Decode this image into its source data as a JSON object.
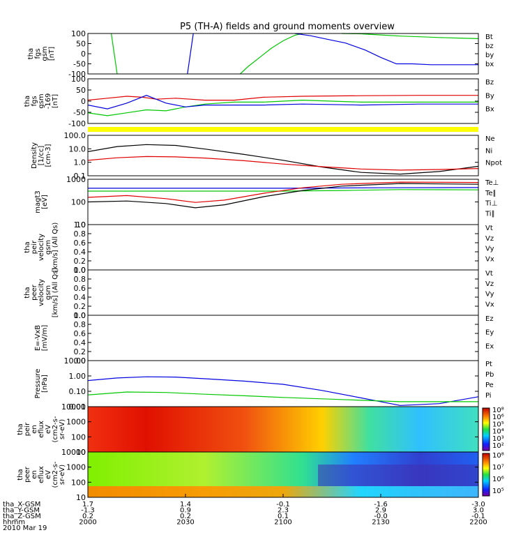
{
  "title": "P5 (TH-A) fields and ground moments overview",
  "colors": {
    "black": "#000000",
    "red": "#e00000",
    "green": "#00c800",
    "blue": "#0000e0",
    "yellow": "#ffff00"
  },
  "chart_data": [
    {
      "type": "line",
      "id": "fgs",
      "ylabel": [
        "tha",
        "fgs",
        "gsm",
        "[nT]"
      ],
      "yticks": [
        "100",
        "50",
        "0",
        "-50",
        "-100"
      ],
      "ylim": [
        -110,
        110
      ],
      "legend": [
        {
          "name": "Bt",
          "color": "black"
        },
        {
          "name": "bz",
          "color": "red"
        },
        {
          "name": "by",
          "color": "green"
        },
        {
          "name": "bx",
          "color": "blue"
        }
      ],
      "series": [
        {
          "name": "by",
          "color": "green",
          "points": [
            [
              2012,
              110
            ],
            [
              2015,
              -110
            ]
          ]
        },
        {
          "name": "bx",
          "color": "blue",
          "points": [
            [
              2051,
              -110
            ],
            [
              2054,
              110
            ]
          ]
        },
        {
          "name": "by",
          "color": "green",
          "points": [
            [
              2078,
              -110
            ],
            [
              2082,
              -70
            ],
            [
              2088,
              -20
            ],
            [
              2094,
              30
            ],
            [
              2100,
              70
            ],
            [
              2106,
              100
            ],
            [
              2110,
              112
            ]
          ]
        },
        {
          "name": "bx",
          "color": "blue",
          "points": [
            [
              2106,
              112
            ],
            [
              2114,
              98
            ],
            [
              2122,
              80
            ],
            [
              2132,
              58
            ],
            [
              2142,
              20
            ],
            [
              2150,
              -20
            ],
            [
              2158,
              -55
            ],
            [
              2166,
              -55
            ],
            [
              2176,
              -60
            ],
            [
              2200,
              -60
            ]
          ]
        },
        {
          "name": "by",
          "color": "green",
          "points": [
            [
              2130,
              112
            ],
            [
              2140,
              108
            ],
            [
              2150,
              102
            ],
            [
              2160,
              96
            ],
            [
              2170,
              92
            ],
            [
              2180,
              88
            ],
            [
              2190,
              85
            ],
            [
              2200,
              82
            ]
          ]
        }
      ]
    },
    {
      "type": "line",
      "id": "fgs2",
      "ylabel": [
        "tha",
        "fgs",
        "gsm",
        "-169",
        "[nT]"
      ],
      "yticks": [
        "100",
        "50",
        "0",
        "-50",
        "-100"
      ],
      "ylim": [
        -115,
        115
      ],
      "legend": [
        {
          "name": "Bz",
          "color": "red"
        },
        {
          "name": "By",
          "color": "green"
        },
        {
          "name": "Bx",
          "color": "blue"
        }
      ],
      "series": [
        {
          "name": "Bz",
          "color": "red",
          "points": [
            [
              2000,
              5
            ],
            [
              2010,
              15
            ],
            [
              2020,
              25
            ],
            [
              2028,
              20
            ],
            [
              2035,
              10
            ],
            [
              2045,
              15
            ],
            [
              2060,
              5
            ],
            [
              2075,
              5
            ],
            [
              2090,
              20
            ],
            [
              2110,
              25
            ],
            [
              2140,
              28
            ],
            [
              2170,
              30
            ],
            [
              2200,
              30
            ]
          ]
        },
        {
          "name": "By",
          "color": "green",
          "points": [
            [
              2000,
              -60
            ],
            [
              2010,
              -75
            ],
            [
              2020,
              -60
            ],
            [
              2030,
              -45
            ],
            [
              2040,
              -50
            ],
            [
              2050,
              -30
            ],
            [
              2060,
              -15
            ],
            [
              2075,
              -5
            ],
            [
              2090,
              -5
            ],
            [
              2110,
              5
            ],
            [
              2140,
              -5
            ],
            [
              2170,
              -5
            ],
            [
              2200,
              -5
            ]
          ]
        },
        {
          "name": "Bx",
          "color": "blue",
          "points": [
            [
              2000,
              -20
            ],
            [
              2010,
              -40
            ],
            [
              2020,
              -10
            ],
            [
              2030,
              30
            ],
            [
              2040,
              -10
            ],
            [
              2050,
              -30
            ],
            [
              2060,
              -20
            ],
            [
              2075,
              -20
            ],
            [
              2090,
              -20
            ],
            [
              2110,
              -15
            ],
            [
              2140,
              -20
            ],
            [
              2170,
              -15
            ],
            [
              2200,
              -15
            ]
          ]
        }
      ]
    },
    {
      "type": "line",
      "id": "density",
      "ylabel": [
        "Density",
        "[1/cc]",
        "[cm-3]"
      ],
      "yticks": [
        "100.0",
        "10.0",
        "1.0",
        "0.1"
      ],
      "ylog": true,
      "ylim": [
        0.05,
        200
      ],
      "legend": [
        {
          "name": "Ne",
          "color": "red"
        },
        {
          "name": "Ni",
          "color": "black"
        },
        {
          "name": "Npot",
          "color": "blue"
        }
      ],
      "series": [
        {
          "name": "Ni",
          "color": "black",
          "points": [
            [
              2000,
              7
            ],
            [
              2015,
              20
            ],
            [
              2030,
              30
            ],
            [
              2045,
              25
            ],
            [
              2060,
              12
            ],
            [
              2080,
              4
            ],
            [
              2100,
              1.2
            ],
            [
              2120,
              0.3
            ],
            [
              2140,
              0.1
            ],
            [
              2160,
              0.07
            ],
            [
              2180,
              0.12
            ],
            [
              2200,
              0.35
            ]
          ]
        },
        {
          "name": "Ne",
          "color": "red",
          "points": [
            [
              2000,
              1.2
            ],
            [
              2015,
              2.0
            ],
            [
              2030,
              2.6
            ],
            [
              2045,
              2.4
            ],
            [
              2060,
              1.9
            ],
            [
              2080,
              1.1
            ],
            [
              2100,
              0.55
            ],
            [
              2120,
              0.32
            ],
            [
              2140,
              0.2
            ],
            [
              2160,
              0.16
            ],
            [
              2180,
              0.18
            ],
            [
              2200,
              0.22
            ]
          ]
        }
      ]
    },
    {
      "type": "line",
      "id": "magt3",
      "ylabel": [
        "magt3",
        "[eV]"
      ],
      "yticks": [
        "1000",
        "100",
        "10"
      ],
      "ylog": true,
      "ylim": [
        10,
        1000
      ],
      "legend": [
        {
          "name": "Te⊥",
          "color": "red"
        },
        {
          "name": "Te∥",
          "color": "black"
        },
        {
          "name": "Ti⊥",
          "color": "blue"
        },
        {
          "name": "Ti∥",
          "color": "green"
        }
      ],
      "series": [
        {
          "name": "Ti⊥",
          "color": "blue",
          "points": [
            [
              2000,
              400
            ],
            [
              2050,
              400
            ],
            [
              2100,
              400
            ],
            [
              2150,
              420
            ],
            [
              2200,
              430
            ]
          ]
        },
        {
          "name": "Ti∥",
          "color": "green",
          "points": [
            [
              2000,
              300
            ],
            [
              2050,
              300
            ],
            [
              2100,
              300
            ],
            [
              2130,
              320
            ],
            [
              2160,
              350
            ],
            [
              2200,
              340
            ]
          ]
        },
        {
          "name": "Te⊥",
          "color": "red",
          "points": [
            [
              2000,
              160
            ],
            [
              2020,
              190
            ],
            [
              2040,
              140
            ],
            [
              2055,
              95
            ],
            [
              2070,
              120
            ],
            [
              2090,
              240
            ],
            [
              2110,
              420
            ],
            [
              2130,
              600
            ],
            [
              2160,
              750
            ],
            [
              2200,
              720
            ]
          ]
        },
        {
          "name": "Te∥",
          "color": "black",
          "points": [
            [
              2000,
              100
            ],
            [
              2020,
              110
            ],
            [
              2040,
              85
            ],
            [
              2055,
              55
            ],
            [
              2070,
              75
            ],
            [
              2090,
              170
            ],
            [
              2110,
              320
            ],
            [
              2130,
              500
            ],
            [
              2160,
              650
            ],
            [
              2200,
              600
            ]
          ]
        }
      ]
    },
    {
      "type": "line",
      "id": "peir",
      "ylabel": [
        "tha",
        "peir",
        "velocity",
        "gsm",
        "[km/s] (All Qs)"
      ],
      "yticks": [
        "1.0",
        "0.8",
        "0.6",
        "0.4",
        "0.2",
        "0.0"
      ],
      "ylim": [
        0,
        1
      ],
      "legend": [
        {
          "name": "Vt",
          "color": "black"
        },
        {
          "name": "Vz",
          "color": "red"
        },
        {
          "name": "Vy",
          "color": "green"
        },
        {
          "name": "Vx",
          "color": "blue"
        }
      ],
      "series": []
    },
    {
      "type": "line",
      "id": "peer",
      "ylabel": [
        "tha",
        "peer",
        "velocity",
        "gsm",
        "[km/s] (All Qs)"
      ],
      "yticks": [
        "1.0",
        "0.8",
        "0.6",
        "0.4",
        "0.2",
        "0.0"
      ],
      "ylim": [
        0,
        1
      ],
      "legend": [
        {
          "name": "Vt",
          "color": "black"
        },
        {
          "name": "Vz",
          "color": "red"
        },
        {
          "name": "Vy",
          "color": "green"
        },
        {
          "name": "Vx",
          "color": "blue"
        }
      ],
      "series": []
    },
    {
      "type": "line",
      "id": "efield",
      "ylabel": [
        "E=-VxB",
        "[mV/m]"
      ],
      "yticks": [
        "1.0",
        "0.8",
        "0.6",
        "0.4",
        "0.2",
        "0.0"
      ],
      "ylim": [
        0,
        1
      ],
      "legend": [
        {
          "name": "Ez",
          "color": "red"
        },
        {
          "name": "Ey",
          "color": "green"
        },
        {
          "name": "Ex",
          "color": "blue"
        }
      ],
      "series": []
    },
    {
      "type": "line",
      "id": "pressure",
      "ylabel": [
        "Pressure",
        "[nPa]"
      ],
      "yticks": [
        "10.00",
        "1.00",
        "0.10",
        "0.01"
      ],
      "ylog": true,
      "ylim": [
        0.004,
        20
      ],
      "legend": [
        {
          "name": "Pt",
          "color": "black"
        },
        {
          "name": "Pb",
          "color": "red"
        },
        {
          "name": "Pe",
          "color": "green"
        },
        {
          "name": "Pi",
          "color": "blue"
        }
      ],
      "series": [
        {
          "name": "Pi",
          "color": "blue",
          "points": [
            [
              2000,
              0.5
            ],
            [
              2015,
              0.8
            ],
            [
              2030,
              1.0
            ],
            [
              2045,
              0.95
            ],
            [
              2060,
              0.7
            ],
            [
              2080,
              0.45
            ],
            [
              2100,
              0.25
            ],
            [
              2120,
              0.08
            ],
            [
              2140,
              0.02
            ],
            [
              2160,
              0.005
            ],
            [
              2180,
              0.007
            ],
            [
              2200,
              0.025
            ]
          ]
        },
        {
          "name": "Pe",
          "color": "green",
          "points": [
            [
              2000,
              0.035
            ],
            [
              2020,
              0.06
            ],
            [
              2040,
              0.055
            ],
            [
              2060,
              0.04
            ],
            [
              2080,
              0.03
            ],
            [
              2100,
              0.022
            ],
            [
              2130,
              0.015
            ],
            [
              2160,
              0.01
            ],
            [
              2200,
              0.01
            ]
          ]
        }
      ]
    },
    {
      "type": "heatmap",
      "id": "peir_spec",
      "ylabel": [
        "tha",
        "peir",
        "en",
        "eflux",
        "eV",
        "(cm2-s-",
        "sr-eV)"
      ],
      "yticks": [
        "10000",
        "1000",
        "100",
        "10"
      ],
      "colorbar": [
        "10⁸",
        "10⁶",
        "10⁵",
        "10⁴",
        "10³",
        "10²"
      ]
    },
    {
      "type": "heatmap",
      "id": "peer_spec",
      "ylabel": [
        "tha",
        "peer",
        "en",
        "eflux",
        "eV",
        "(cm2-s-",
        "sr-eV)"
      ],
      "yticks": [
        "10000",
        "1000",
        "100",
        "10"
      ],
      "colorbar": [
        "10⁸",
        "10⁷",
        "10⁶",
        "10⁵"
      ]
    }
  ],
  "xaxis": {
    "xlim": [
      2000,
      2200
    ],
    "rows": [
      {
        "label": "tha_X-GSM",
        "values": [
          "1.7",
          "1.4",
          "-0.1",
          "-1.6",
          "-3.0"
        ]
      },
      {
        "label": "tha_Y-GSM",
        "values": [
          "-1.3",
          "0.9",
          "2.3",
          "2.9",
          "3.0"
        ]
      },
      {
        "label": "tha_Z-GSM",
        "values": [
          "0.2",
          "0.2",
          "0.1",
          "-0.0",
          "-0.1"
        ]
      },
      {
        "label": "hhmm",
        "values": [
          "2000",
          "2030",
          "2100",
          "2130",
          "2200"
        ]
      }
    ],
    "date": "2010 Mar 19"
  }
}
